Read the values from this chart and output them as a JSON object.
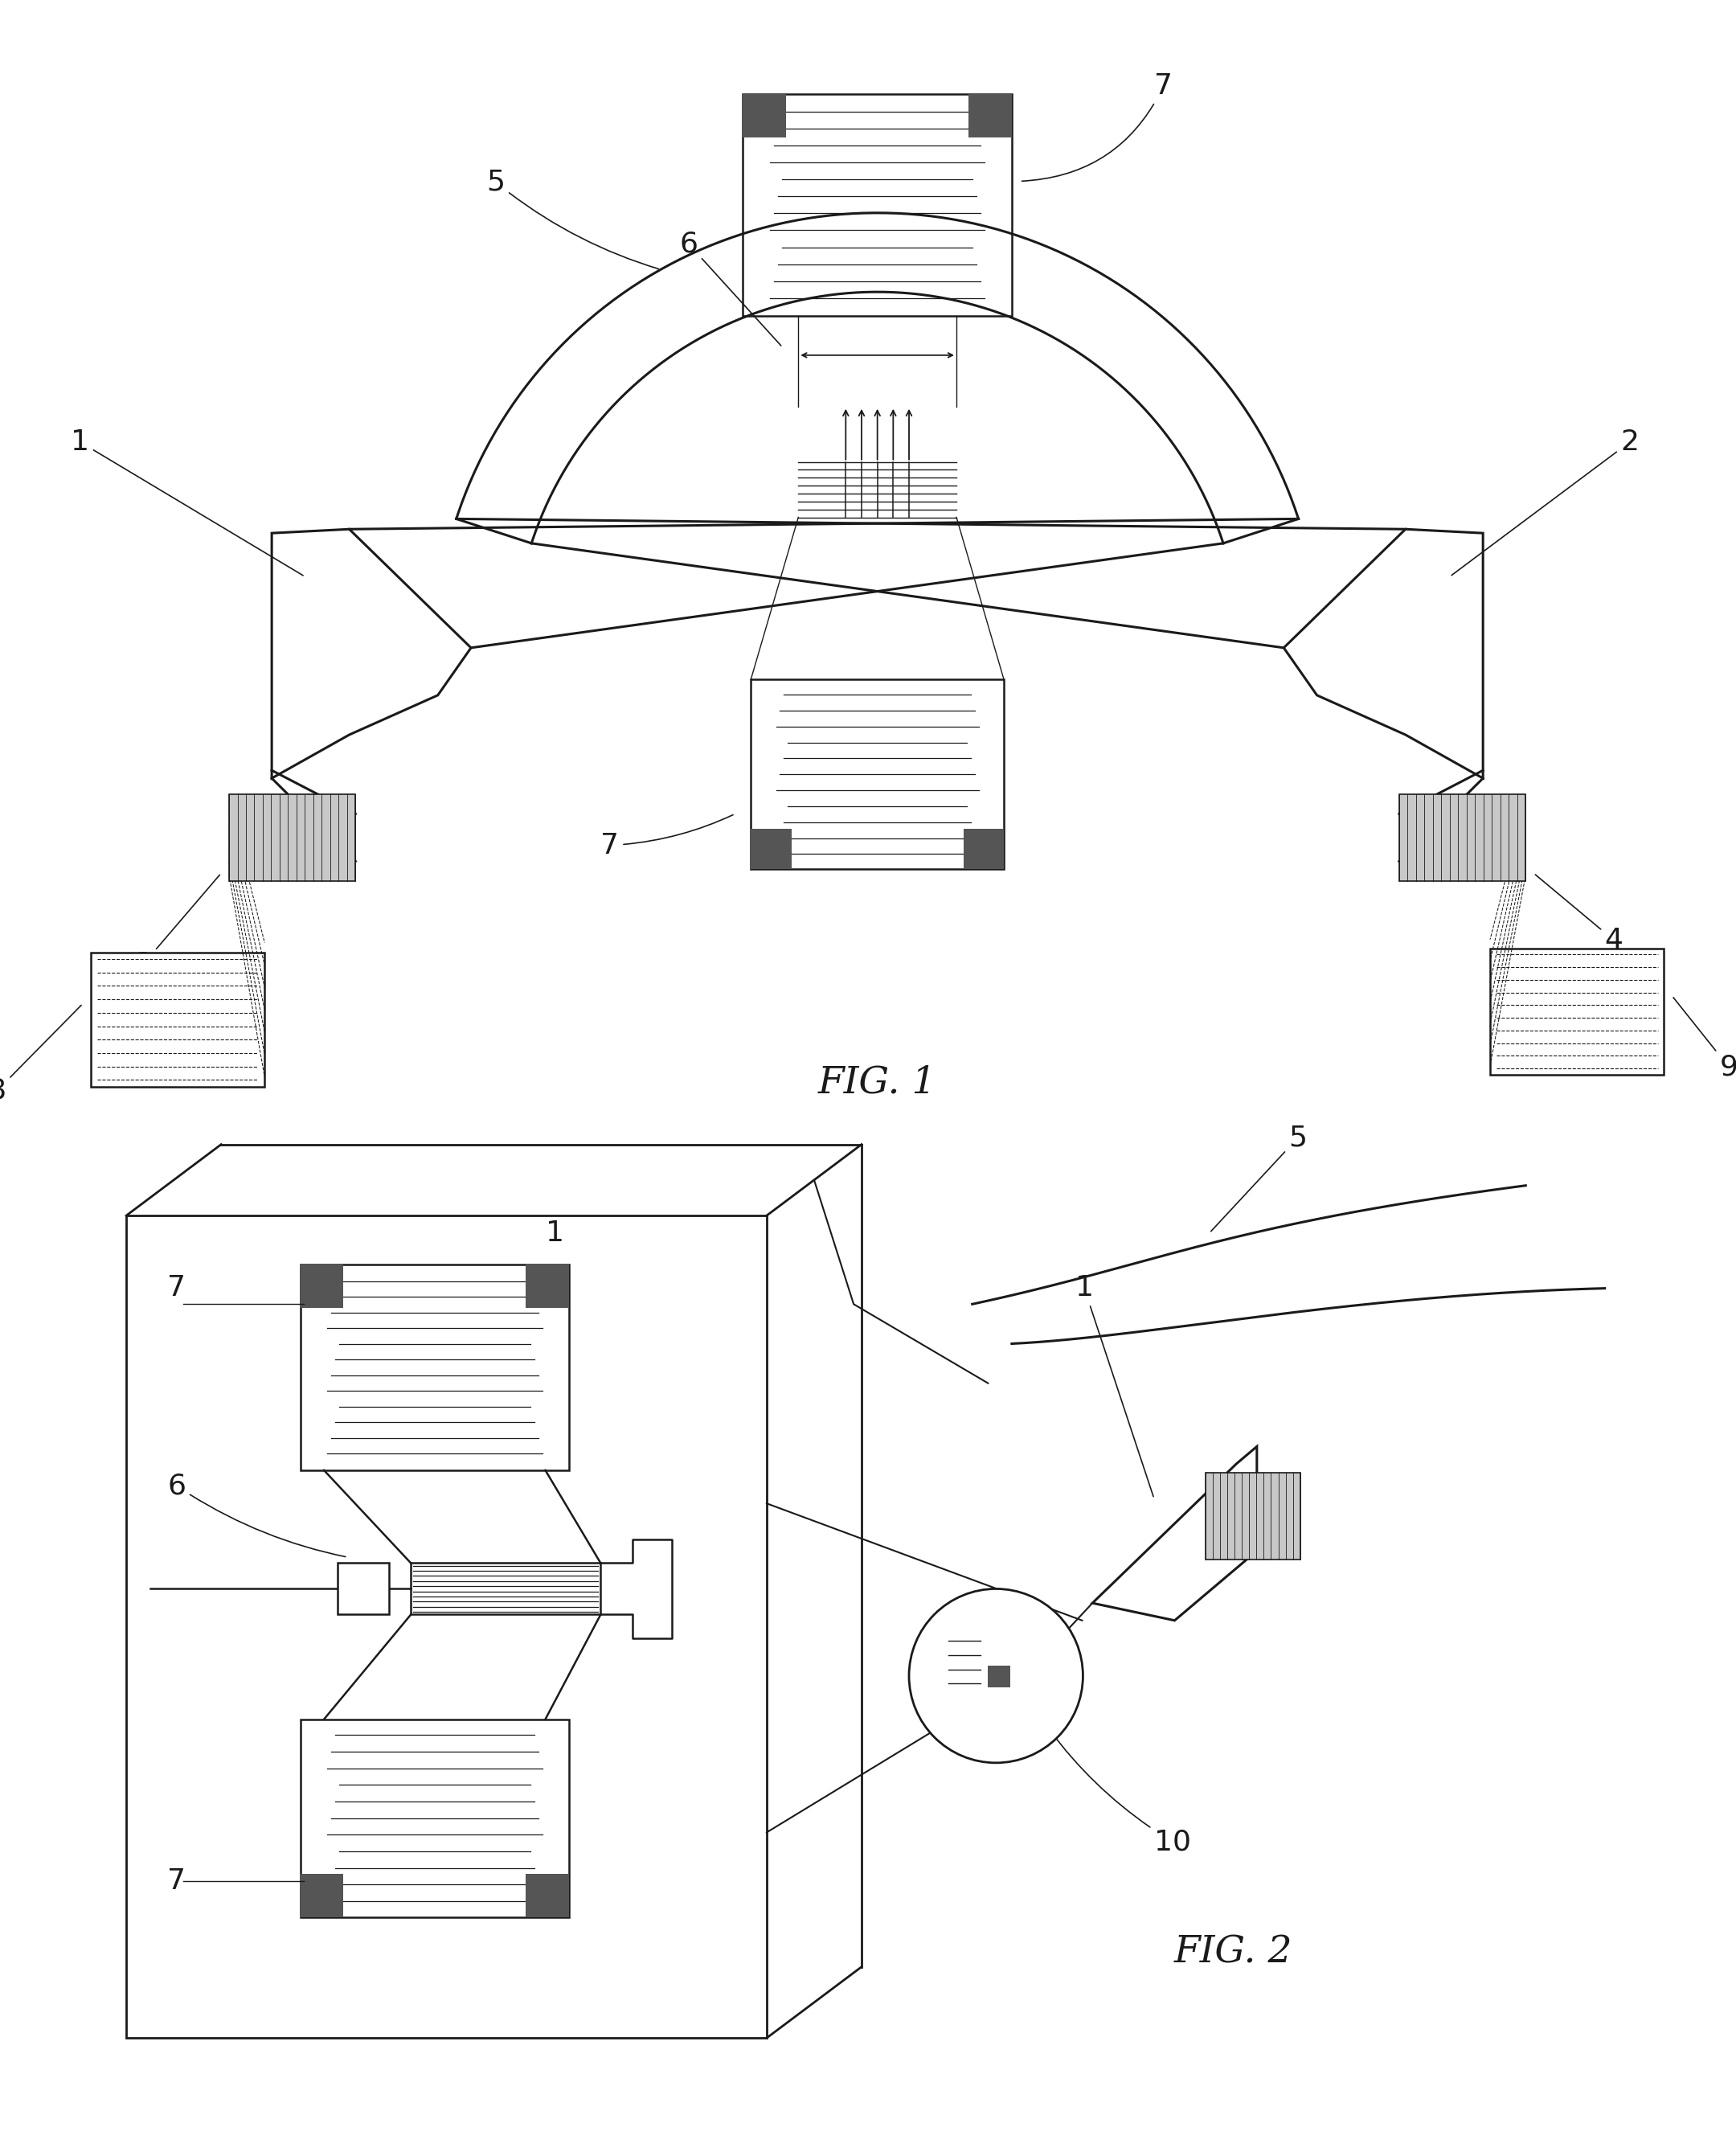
{
  "fig_label_1": "FIG. 1",
  "fig_label_2": "FIG. 2",
  "background_color": "#ffffff",
  "line_color": "#1a1a1a",
  "dark_fill": "#555555",
  "line_width": 1.8,
  "thick_line": 2.2,
  "label_fontsize": 26,
  "fig_label_fontsize": 34
}
